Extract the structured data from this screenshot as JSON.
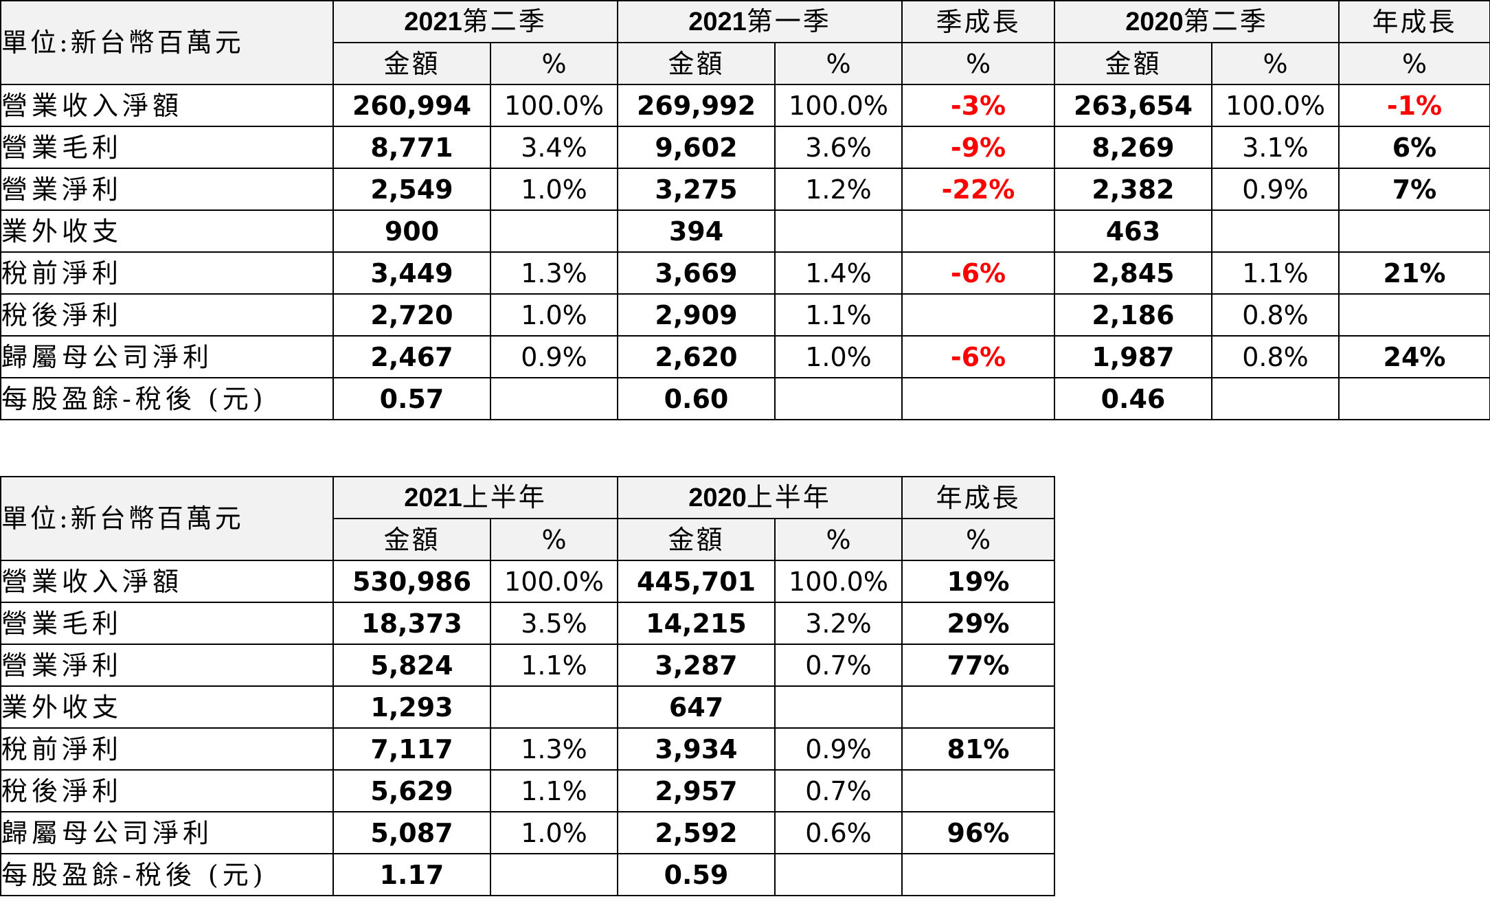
{
  "quarterly": {
    "unit_label": "單位:新台幣百萬元",
    "headers": {
      "q2_2021": {
        "year": "2021",
        "period": "第二季"
      },
      "q1_2021": {
        "year": "2021",
        "period": "第一季"
      },
      "qoq": "季成長",
      "q2_2020": {
        "year": "2020",
        "period": "第二季"
      },
      "yoy": "年成長",
      "amount": "金額",
      "pct": "%"
    },
    "rows": [
      {
        "label": "營業收入淨額",
        "q2_2021": "260,994",
        "q2_2021_pct": "100.0%",
        "q1_2021": "269,992",
        "q1_2021_pct": "100.0%",
        "qoq": "-3%",
        "q2_2020": "263,654",
        "q2_2020_pct": "100.0%",
        "yoy": "-1%"
      },
      {
        "label": "營業毛利",
        "q2_2021": "8,771",
        "q2_2021_pct": "3.4%",
        "q1_2021": "9,602",
        "q1_2021_pct": "3.6%",
        "qoq": "-9%",
        "q2_2020": "8,269",
        "q2_2020_pct": "3.1%",
        "yoy": "6%"
      },
      {
        "label": "營業淨利",
        "q2_2021": "2,549",
        "q2_2021_pct": "1.0%",
        "q1_2021": "3,275",
        "q1_2021_pct": "1.2%",
        "qoq": "-22%",
        "q2_2020": "2,382",
        "q2_2020_pct": "0.9%",
        "yoy": "7%"
      },
      {
        "label": "業外收支",
        "q2_2021": "900",
        "q2_2021_pct": "",
        "q1_2021": "394",
        "q1_2021_pct": "",
        "qoq": "",
        "q2_2020": "463",
        "q2_2020_pct": "",
        "yoy": ""
      },
      {
        "label": "稅前淨利",
        "q2_2021": "3,449",
        "q2_2021_pct": "1.3%",
        "q1_2021": "3,669",
        "q1_2021_pct": "1.4%",
        "qoq": "-6%",
        "q2_2020": "2,845",
        "q2_2020_pct": "1.1%",
        "yoy": "21%"
      },
      {
        "label": "稅後淨利",
        "q2_2021": "2,720",
        "q2_2021_pct": "1.0%",
        "q1_2021": "2,909",
        "q1_2021_pct": "1.1%",
        "qoq": "",
        "q2_2020": "2,186",
        "q2_2020_pct": "0.8%",
        "yoy": ""
      },
      {
        "label": "歸屬母公司淨利",
        "q2_2021": "2,467",
        "q2_2021_pct": "0.9%",
        "q1_2021": "2,620",
        "q1_2021_pct": "1.0%",
        "qoq": "-6%",
        "q2_2020": "1,987",
        "q2_2020_pct": "0.8%",
        "yoy": "24%"
      },
      {
        "label": "每股盈餘-稅後 (元)",
        "q2_2021": "0.57",
        "q2_2021_pct": "",
        "q1_2021": "0.60",
        "q1_2021_pct": "",
        "qoq": "",
        "q2_2020": "0.46",
        "q2_2020_pct": "",
        "yoy": ""
      }
    ]
  },
  "halfyear": {
    "unit_label": "單位:新台幣百萬元",
    "headers": {
      "h1_2021": {
        "year": "2021",
        "period": "上半年"
      },
      "h1_2020": {
        "year": "2020",
        "period": "上半年"
      },
      "yoy": "年成長",
      "amount": "金額",
      "pct": "%"
    },
    "rows": [
      {
        "label": "營業收入淨額",
        "h1_2021": "530,986",
        "h1_2021_pct": "100.0%",
        "h1_2020": "445,701",
        "h1_2020_pct": "100.0%",
        "yoy": "19%"
      },
      {
        "label": "營業毛利",
        "h1_2021": "18,373",
        "h1_2021_pct": "3.5%",
        "h1_2020": "14,215",
        "h1_2020_pct": "3.2%",
        "yoy": "29%"
      },
      {
        "label": "營業淨利",
        "h1_2021": "5,824",
        "h1_2021_pct": "1.1%",
        "h1_2020": "3,287",
        "h1_2020_pct": "0.7%",
        "yoy": "77%"
      },
      {
        "label": "業外收支",
        "h1_2021": "1,293",
        "h1_2021_pct": "",
        "h1_2020": "647",
        "h1_2020_pct": "",
        "yoy": ""
      },
      {
        "label": "稅前淨利",
        "h1_2021": "7,117",
        "h1_2021_pct": "1.3%",
        "h1_2020": "3,934",
        "h1_2020_pct": "0.9%",
        "yoy": "81%"
      },
      {
        "label": "稅後淨利",
        "h1_2021": "5,629",
        "h1_2021_pct": "1.1%",
        "h1_2020": "2,957",
        "h1_2020_pct": "0.7%",
        "yoy": ""
      },
      {
        "label": "歸屬母公司淨利",
        "h1_2021": "5,087",
        "h1_2021_pct": "1.0%",
        "h1_2020": "2,592",
        "h1_2020_pct": "0.6%",
        "yoy": "96%"
      },
      {
        "label": "每股盈餘-稅後 (元)",
        "h1_2021": "1.17",
        "h1_2021_pct": "",
        "h1_2020": "0.59",
        "h1_2020_pct": "",
        "yoy": ""
      }
    ]
  },
  "colors": {
    "header_bg": "#f2f2f2",
    "border": "#000000",
    "negative_growth": "#ff0000",
    "text": "#000000"
  }
}
